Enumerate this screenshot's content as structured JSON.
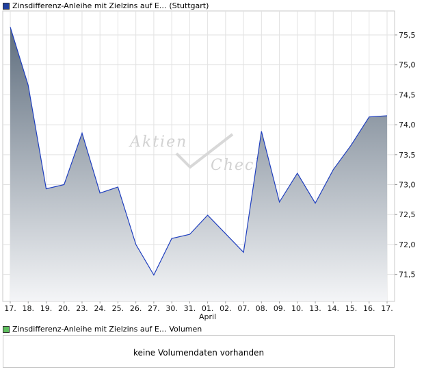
{
  "legend": {
    "price_series": "Zinsdifferenz-Anleihe mit Zielzins auf E...",
    "price_exchange": "(Stuttgart)",
    "volume_series": "Zinsdifferenz-Anleihe mit Zielzins auf E...",
    "volume_label": "Volumen",
    "price_color": "#1f3f9f",
    "volume_color": "#5fbf5f"
  },
  "watermark": {
    "line1": "Aktien",
    "line2": "Check"
  },
  "volume_panel": {
    "message": "keine Volumendaten vorhanden"
  },
  "chart_data": {
    "type": "area",
    "x": [
      "17.",
      "18.",
      "19.",
      "20.",
      "23.",
      "24.",
      "25.",
      "26.",
      "27.",
      "30.",
      "31.",
      "01.",
      "02.",
      "07.",
      "08.",
      "09.",
      "10.",
      "13.",
      "14.",
      "15.",
      "16.",
      "17."
    ],
    "x_sublabel": {
      "index": 11,
      "text": "April"
    },
    "values": [
      75.63,
      74.66,
      72.93,
      73.0,
      73.86,
      72.86,
      72.96,
      72.0,
      71.49,
      72.1,
      72.17,
      72.49,
      72.18,
      71.87,
      73.89,
      72.71,
      73.19,
      72.69,
      73.25,
      73.66,
      74.13,
      74.15
    ],
    "yticks": [
      "71,5",
      "72,0",
      "72,5",
      "73,0",
      "73,5",
      "74,0",
      "74,5",
      "75,0",
      "75,5"
    ],
    "ytick_values": [
      71.5,
      72.0,
      72.5,
      73.0,
      73.5,
      74.0,
      74.5,
      75.0,
      75.5
    ],
    "ylim": [
      71.05,
      75.9
    ],
    "grid": true,
    "line_color": "#1f3fbf",
    "fill_top": "#5f6e7e",
    "fill_bottom": "#f4f5f7"
  }
}
